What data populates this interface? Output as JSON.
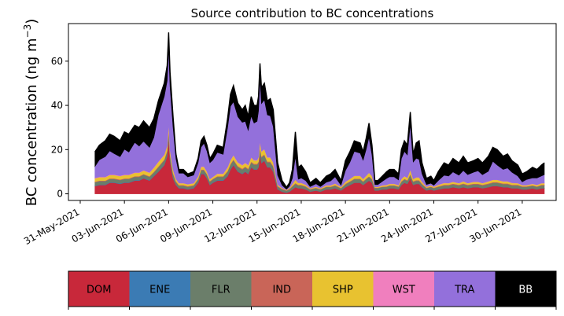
{
  "chart_data": {
    "type": "area",
    "title": "Source contribution to BC concentrations",
    "ylabel_main": "BC concentration (ng m",
    "ylabel_sup": "−3",
    "ylabel_close": ")",
    "xlabel": "",
    "ylim": [
      -3,
      77
    ],
    "yticks": [
      0,
      20,
      40,
      60
    ],
    "xlim_day": [
      -0.8,
      32.3
    ],
    "xticks": [
      {
        "day": 0,
        "label": "31-May-2021"
      },
      {
        "day": 3,
        "label": "03-Jun-2021"
      },
      {
        "day": 6,
        "label": "06-Jun-2021"
      },
      {
        "day": 9,
        "label": "09-Jun-2021"
      },
      {
        "day": 12,
        "label": "12-Jun-2021"
      },
      {
        "day": 15,
        "label": "15-Jun-2021"
      },
      {
        "day": 18,
        "label": "18-Jun-2021"
      },
      {
        "day": 21,
        "label": "21-Jun-2021"
      },
      {
        "day": 24,
        "label": "24-Jun-2021"
      },
      {
        "day": 27,
        "label": "27-Jun-2021"
      },
      {
        "day": 30,
        "label": "30-Jun-2021"
      }
    ],
    "x_day": [
      1.0,
      1.3,
      1.7,
      2.0,
      2.3,
      2.7,
      3.0,
      3.3,
      3.7,
      4.0,
      4.3,
      4.7,
      5.0,
      5.3,
      5.7,
      5.9,
      6.0,
      6.1,
      6.3,
      6.5,
      6.7,
      7.0,
      7.3,
      7.7,
      8.0,
      8.2,
      8.4,
      8.6,
      8.8,
      9.0,
      9.3,
      9.7,
      10.0,
      10.2,
      10.4,
      10.7,
      11.0,
      11.2,
      11.4,
      11.6,
      11.8,
      12.0,
      12.1,
      12.2,
      12.3,
      12.5,
      12.7,
      12.9,
      13.1,
      13.4,
      13.7,
      14.0,
      14.2,
      14.4,
      14.6,
      14.8,
      15.0,
      15.3,
      15.6,
      16.0,
      16.3,
      16.7,
      17.0,
      17.3,
      17.7,
      18.0,
      18.3,
      18.6,
      19.0,
      19.2,
      19.4,
      19.6,
      19.8,
      20.0,
      20.2,
      20.5,
      20.8,
      21.0,
      21.3,
      21.6,
      21.8,
      22.0,
      22.2,
      22.4,
      22.6,
      22.8,
      23.0,
      23.2,
      23.5,
      23.8,
      24.0,
      24.3,
      24.7,
      25.0,
      25.3,
      25.7,
      26.0,
      26.3,
      26.7,
      27.0,
      27.3,
      27.7,
      28.0,
      28.3,
      28.7,
      29.0,
      29.3,
      29.7,
      30.0,
      30.3,
      30.7,
      31.0,
      31.3,
      31.5
    ],
    "total": [
      19,
      22,
      24,
      27,
      26,
      24,
      28,
      27,
      31,
      30,
      33,
      30,
      34,
      42,
      50,
      58,
      73,
      55,
      35,
      18,
      11,
      11,
      9,
      10,
      16,
      24,
      26,
      22,
      16,
      18,
      22,
      21,
      34,
      45,
      49,
      41,
      38,
      40,
      35,
      44,
      40,
      40,
      44,
      59,
      48,
      50,
      42,
      43,
      38,
      14,
      6,
      3,
      5,
      11,
      28,
      12,
      13,
      10,
      5,
      7,
      5,
      8,
      9,
      11,
      6,
      15,
      19,
      24,
      23,
      19,
      25,
      32,
      22,
      6,
      6,
      8,
      10,
      11,
      11,
      9,
      20,
      24,
      22,
      37,
      18,
      23,
      24,
      14,
      7,
      8,
      6,
      10,
      14,
      13,
      16,
      14,
      17,
      14,
      15,
      16,
      14,
      17,
      21,
      20,
      17,
      18,
      15,
      13,
      9,
      10,
      12,
      11,
      13,
      14
    ],
    "series": [
      {
        "name": "DOM",
        "color": "#c8283a",
        "values": [
          3.5,
          4,
          4,
          5,
          5,
          4.5,
          5,
          5,
          6,
          6,
          7,
          6,
          8,
          10,
          13,
          17,
          26,
          15,
          7,
          4,
          2.5,
          2.5,
          2,
          2.5,
          5,
          9,
          9,
          7,
          4,
          5,
          6,
          6,
          8,
          11,
          13,
          10,
          9,
          10,
          9,
          12,
          11,
          11,
          12,
          18,
          14,
          15,
          12,
          12,
          10,
          2,
          1,
          0.5,
          1,
          2,
          3,
          2.5,
          2.5,
          2,
          1,
          1.5,
          1,
          2,
          2,
          2.5,
          1.5,
          3,
          4,
          5,
          5,
          4,
          5,
          6,
          5,
          1.5,
          1.5,
          2,
          2,
          2.5,
          2.5,
          2,
          4,
          5,
          4.5,
          7,
          4,
          4.5,
          4.5,
          3,
          1.5,
          2,
          1.5,
          2,
          2.5,
          2.5,
          3,
          2.5,
          3,
          2.5,
          3,
          3,
          2.5,
          3,
          3.5,
          3.5,
          3,
          3,
          2.5,
          2.5,
          2,
          2,
          2.5,
          2,
          2.5,
          2.5
        ]
      },
      {
        "name": "ENE",
        "color": "#3b7bb4",
        "values": [
          0.2,
          0.2,
          0.2,
          0.2,
          0.2,
          0.2,
          0.2,
          0.2,
          0.2,
          0.2,
          0.2,
          0.2,
          0.2,
          0.2,
          0.2,
          0.2,
          0.2,
          0.2,
          0.2,
          0.2,
          0.2,
          0.2,
          0.2,
          0.2,
          0.2,
          0.2,
          0.2,
          0.2,
          0.2,
          0.2,
          0.2,
          0.2,
          0.2,
          0.2,
          0.2,
          0.2,
          0.2,
          0.2,
          0.2,
          0.2,
          0.2,
          0.2,
          0.2,
          0.2,
          0.2,
          0.2,
          0.2,
          0.2,
          0.2,
          0.1,
          0.1,
          0.1,
          0.1,
          0.1,
          0.1,
          0.1,
          0.1,
          0.1,
          0.1,
          0.1,
          0.1,
          0.1,
          0.1,
          0.1,
          0.1,
          0.1,
          0.1,
          0.1,
          0.1,
          0.1,
          0.1,
          0.1,
          0.1,
          0.1,
          0.1,
          0.1,
          0.1,
          0.1,
          0.1,
          0.1,
          0.1,
          0.1,
          0.1,
          0.1,
          0.1,
          0.1,
          0.1,
          0.1,
          0.1,
          0.1,
          0.1,
          0.1,
          0.1,
          0.1,
          0.1,
          0.1,
          0.1,
          0.1,
          0.1,
          0.1,
          0.1,
          0.1,
          0.1,
          0.1,
          0.1,
          0.1,
          0.1,
          0.1,
          0.1,
          0.1,
          0.1,
          0.1,
          0.1,
          0.1
        ]
      },
      {
        "name": "FLR",
        "color": "#6b7e6a",
        "values": [
          1.5,
          1.5,
          1.5,
          1.5,
          1.5,
          1.5,
          1.5,
          1.5,
          1.5,
          1.5,
          1.5,
          1.5,
          1.5,
          1.8,
          2,
          2,
          2.5,
          2,
          1.8,
          1.2,
          1,
          1,
          1,
          1,
          1.3,
          1.5,
          1.5,
          1.5,
          1.3,
          1.3,
          1.5,
          1.5,
          1.8,
          2,
          2,
          2,
          1.8,
          1.8,
          1.8,
          2,
          2,
          2,
          2,
          2.5,
          2.3,
          2.3,
          2,
          2,
          2,
          1.2,
          1,
          0.8,
          1,
          1.2,
          1.5,
          1.2,
          1.2,
          1.1,
          0.9,
          1,
          0.9,
          1,
          1,
          1.1,
          0.9,
          1.2,
          1.3,
          1.5,
          1.5,
          1.3,
          1.5,
          1.6,
          1.4,
          1,
          1,
          1,
          1.1,
          1.1,
          1.1,
          1.1,
          1.3,
          1.4,
          1.3,
          1.6,
          1.3,
          1.3,
          1.3,
          1.2,
          1,
          1,
          1,
          1.1,
          1.2,
          1.2,
          1.2,
          1.2,
          1.3,
          1.2,
          1.2,
          1.2,
          1.2,
          1.3,
          1.4,
          1.4,
          1.3,
          1.3,
          1.2,
          1.2,
          1.1,
          1.1,
          1.1,
          1.1,
          1.2,
          1.2
        ]
      },
      {
        "name": "IND",
        "color": "#c96558",
        "values": [
          0.3,
          0.3,
          0.3,
          0.3,
          0.3,
          0.3,
          0.3,
          0.3,
          0.3,
          0.3,
          0.3,
          0.3,
          0.3,
          0.4,
          0.4,
          0.4,
          0.5,
          0.4,
          0.4,
          0.3,
          0.3,
          0.3,
          0.3,
          0.3,
          0.3,
          0.3,
          0.3,
          0.3,
          0.3,
          0.3,
          0.3,
          0.3,
          0.4,
          0.4,
          0.4,
          0.4,
          0.4,
          0.4,
          0.4,
          0.4,
          0.4,
          0.4,
          0.4,
          0.5,
          0.4,
          0.4,
          0.4,
          0.4,
          0.4,
          0.3,
          0.2,
          0.2,
          0.2,
          0.3,
          0.3,
          0.3,
          0.3,
          0.3,
          0.2,
          0.2,
          0.2,
          0.2,
          0.2,
          0.3,
          0.2,
          0.3,
          0.3,
          0.3,
          0.3,
          0.3,
          0.3,
          0.3,
          0.3,
          0.2,
          0.2,
          0.2,
          0.2,
          0.2,
          0.2,
          0.2,
          0.3,
          0.3,
          0.3,
          0.3,
          0.3,
          0.3,
          0.3,
          0.3,
          0.2,
          0.2,
          0.2,
          0.2,
          0.3,
          0.3,
          0.3,
          0.3,
          0.3,
          0.3,
          0.3,
          0.3,
          0.3,
          0.3,
          0.3,
          0.3,
          0.3,
          0.3,
          0.3,
          0.3,
          0.2,
          0.2,
          0.2,
          0.2,
          0.3,
          0.3
        ]
      },
      {
        "name": "SHP",
        "color": "#e8c230",
        "values": [
          1.5,
          1.5,
          1.5,
          1.5,
          1.5,
          1.5,
          1.5,
          1.5,
          1.5,
          1.5,
          1.5,
          1.5,
          1.8,
          2,
          2,
          2,
          2.5,
          2,
          1.5,
          1,
          0.8,
          0.8,
          0.8,
          0.8,
          1,
          1.2,
          1.2,
          1,
          0.8,
          0.8,
          1,
          1,
          1.5,
          1.5,
          1.8,
          1.5,
          1.5,
          1.5,
          1.5,
          1.8,
          1.5,
          1.5,
          1.8,
          2.5,
          2.2,
          2.2,
          1.8,
          1.8,
          1.5,
          0.5,
          0.3,
          0.2,
          0.3,
          0.8,
          1.5,
          0.8,
          0.8,
          0.6,
          0.3,
          0.4,
          0.3,
          0.5,
          0.5,
          0.6,
          0.4,
          0.8,
          1,
          1.2,
          1.2,
          1,
          1.2,
          1.5,
          1.2,
          0.3,
          0.3,
          0.5,
          0.6,
          0.6,
          0.6,
          0.5,
          1,
          1.2,
          1,
          1.8,
          1,
          1.2,
          1.2,
          0.8,
          0.4,
          0.5,
          0.4,
          0.6,
          0.8,
          0.7,
          0.8,
          0.7,
          0.9,
          0.7,
          0.8,
          0.8,
          0.7,
          0.9,
          1,
          1,
          0.9,
          0.9,
          0.8,
          0.7,
          0.5,
          0.5,
          0.6,
          0.6,
          0.7,
          0.7
        ]
      },
      {
        "name": "WST",
        "color": "#f07fbe",
        "values": [
          0.2,
          0.2,
          0.2,
          0.2,
          0.2,
          0.2,
          0.2,
          0.2,
          0.2,
          0.2,
          0.2,
          0.2,
          0.2,
          0.2,
          0.2,
          0.2,
          0.3,
          0.2,
          0.2,
          0.1,
          0.1,
          0.1,
          0.1,
          0.1,
          0.1,
          0.2,
          0.2,
          0.2,
          0.1,
          0.1,
          0.2,
          0.2,
          0.2,
          0.2,
          0.2,
          0.2,
          0.2,
          0.2,
          0.2,
          0.2,
          0.2,
          0.2,
          0.2,
          0.3,
          0.2,
          0.2,
          0.2,
          0.2,
          0.2,
          0.1,
          0.1,
          0.1,
          0.1,
          0.1,
          0.1,
          0.1,
          0.1,
          0.1,
          0.1,
          0.1,
          0.1,
          0.1,
          0.1,
          0.1,
          0.1,
          0.1,
          0.1,
          0.1,
          0.1,
          0.1,
          0.1,
          0.1,
          0.1,
          0.1,
          0.1,
          0.1,
          0.1,
          0.1,
          0.1,
          0.1,
          0.1,
          0.1,
          0.1,
          0.1,
          0.1,
          0.1,
          0.1,
          0.1,
          0.1,
          0.1,
          0.1,
          0.1,
          0.1,
          0.1,
          0.1,
          0.1,
          0.1,
          0.1,
          0.1,
          0.1,
          0.1,
          0.1,
          0.1,
          0.1,
          0.1,
          0.1,
          0.1,
          0.1,
          0.1,
          0.1,
          0.1,
          0.1,
          0.1,
          0.1
        ]
      }
    ],
    "tra_color": "#9370db",
    "bb_color": "#000000",
    "bb_share": [
      0.35,
      0.3,
      0.3,
      0.28,
      0.3,
      0.3,
      0.28,
      0.3,
      0.25,
      0.28,
      0.28,
      0.3,
      0.25,
      0.15,
      0.12,
      0.12,
      0.1,
      0.12,
      0.14,
      0.12,
      0.15,
      0.15,
      0.15,
      0.15,
      0.12,
      0.12,
      0.12,
      0.12,
      0.12,
      0.15,
      0.15,
      0.15,
      0.12,
      0.12,
      0.15,
      0.15,
      0.15,
      0.18,
      0.18,
      0.2,
      0.2,
      0.18,
      0.15,
      0.12,
      0.15,
      0.15,
      0.15,
      0.18,
      0.2,
      0.4,
      0.35,
      0.3,
      0.3,
      0.35,
      0.4,
      0.45,
      0.45,
      0.4,
      0.35,
      0.35,
      0.35,
      0.35,
      0.35,
      0.3,
      0.35,
      0.3,
      0.25,
      0.2,
      0.2,
      0.2,
      0.2,
      0.2,
      0.2,
      0.3,
      0.3,
      0.3,
      0.3,
      0.3,
      0.3,
      0.3,
      0.2,
      0.2,
      0.2,
      0.15,
      0.2,
      0.3,
      0.35,
      0.35,
      0.4,
      0.4,
      0.35,
      0.4,
      0.4,
      0.38,
      0.38,
      0.4,
      0.38,
      0.38,
      0.35,
      0.35,
      0.38,
      0.4,
      0.3,
      0.35,
      0.35,
      0.35,
      0.35,
      0.38,
      0.4,
      0.35,
      0.4,
      0.35,
      0.38,
      0.38
    ]
  },
  "colorbar": {
    "items": [
      {
        "label": "DOM",
        "color": "#c8283a",
        "text_color": "#000000"
      },
      {
        "label": "ENE",
        "color": "#3b7bb4",
        "text_color": "#000000"
      },
      {
        "label": "FLR",
        "color": "#6b7e6a",
        "text_color": "#000000"
      },
      {
        "label": "IND",
        "color": "#c96558",
        "text_color": "#000000"
      },
      {
        "label": "SHP",
        "color": "#e8c230",
        "text_color": "#000000"
      },
      {
        "label": "WST",
        "color": "#f07fbe",
        "text_color": "#000000"
      },
      {
        "label": "TRA",
        "color": "#9370db",
        "text_color": "#000000"
      },
      {
        "label": "BB",
        "color": "#000000",
        "text_color": "#ffffff"
      }
    ]
  }
}
